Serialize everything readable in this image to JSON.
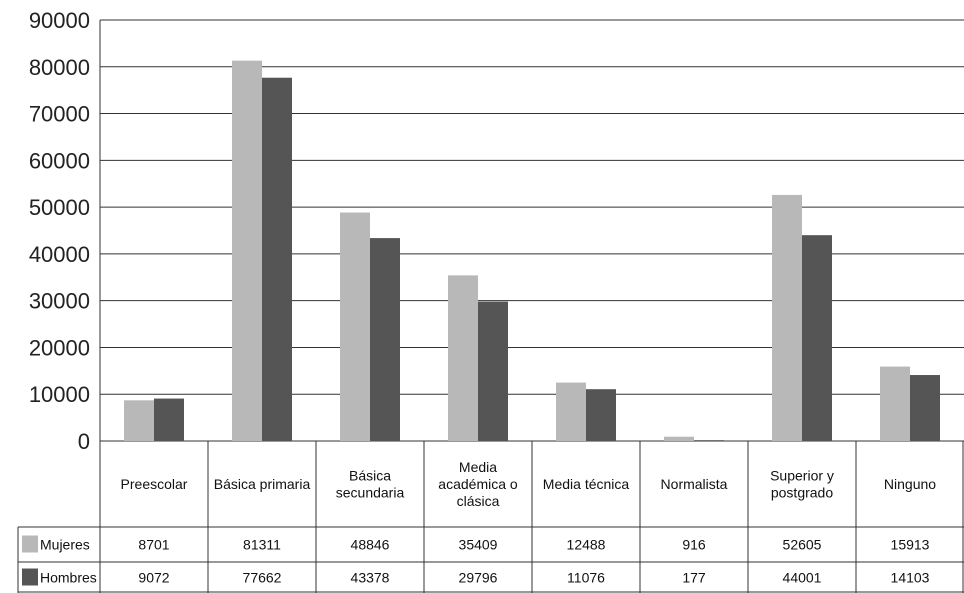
{
  "chart_data": {
    "type": "bar",
    "categories": [
      [
        "Preescolar"
      ],
      [
        "Básica primaria"
      ],
      [
        "Básica",
        "secundaria"
      ],
      [
        "Media",
        "académica o",
        "clásica"
      ],
      [
        "Media técnica"
      ],
      [
        "Normalista"
      ],
      [
        "Superior y",
        "postgrado"
      ],
      [
        "Ninguno"
      ]
    ],
    "series": [
      {
        "name": "Mujeres",
        "color": "#b8b8b8",
        "values": [
          8701,
          81311,
          48846,
          35409,
          12488,
          916,
          52605,
          15913
        ]
      },
      {
        "name": "Hombres",
        "color": "#555555",
        "values": [
          9072,
          77662,
          43378,
          29796,
          11076,
          177,
          44001,
          14103
        ]
      }
    ],
    "ylim": [
      0,
      90000
    ],
    "yticks": [
      0,
      10000,
      20000,
      30000,
      40000,
      50000,
      60000,
      70000,
      80000,
      90000
    ],
    "grid": true,
    "legend": "bottom-left data table"
  }
}
